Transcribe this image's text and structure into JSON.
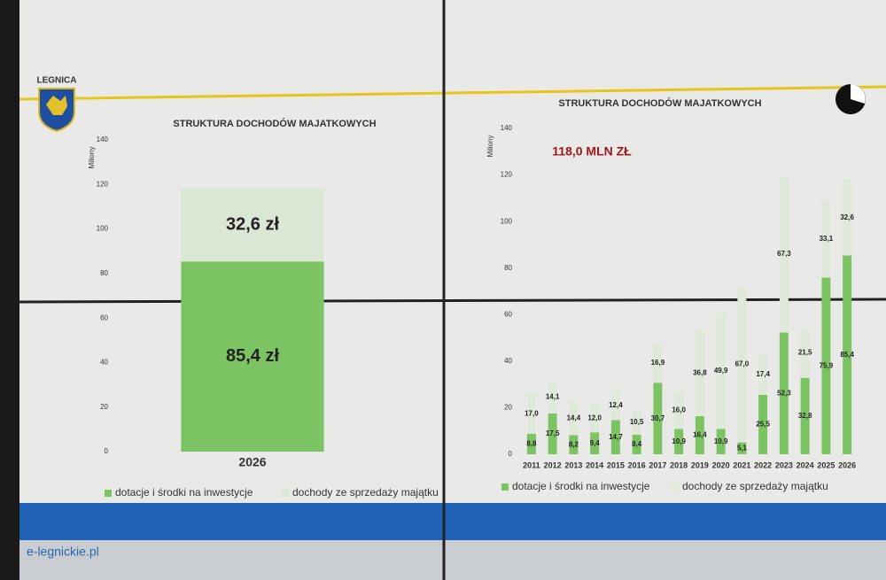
{
  "header": {
    "logo": "LEGNICA"
  },
  "watermark": "e-legnickie.pl",
  "chart_data": [
    {
      "type": "bar",
      "stacked": true,
      "title": "STRUKTURA DOCHODÓW MAJATKOWYCH",
      "y_label": "Miliony",
      "categories": [
        "2026"
      ],
      "series": [
        {
          "name": "dotacje i środki na inwestycje",
          "color": "#7cc463",
          "values": [
            85.4
          ],
          "value_labels": [
            "85,4 zł"
          ]
        },
        {
          "name": "dochody ze sprzedaży majątku",
          "color": "#dbe6d4",
          "values": [
            32.6
          ],
          "value_labels": [
            "32,6 zł"
          ]
        }
      ],
      "ylim": [
        0,
        140
      ],
      "yticks": [
        0,
        20,
        40,
        60,
        80,
        100,
        120,
        140
      ],
      "grid": false
    },
    {
      "type": "bar",
      "stacked": true,
      "title": "STRUKTURA DOCHODÓW MAJATKOWYCH",
      "y_label": "Miliony",
      "annotation": "118,0 MLN ZŁ",
      "categories": [
        "2011",
        "2012",
        "2013",
        "2014",
        "2015",
        "2016",
        "2017",
        "2018",
        "2019",
        "2020",
        "2021",
        "2022",
        "2023",
        "2024",
        "2025",
        "2026"
      ],
      "series": [
        {
          "name": "dotacje i środki na inwestycje",
          "color": "#7cc463",
          "values": [
            8.8,
            17.5,
            8.2,
            9.4,
            14.7,
            8.4,
            30.7,
            10.9,
            16.4,
            10.9,
            5.1,
            25.5,
            52.3,
            32.8,
            75.9,
            85.4
          ],
          "value_labels": [
            "8,8",
            "17,5",
            "8,2",
            "9,4",
            "14,7",
            "8,4",
            "30,7",
            "10,9",
            "16,4",
            "10,9",
            "5,1",
            "25,5",
            "52,3",
            "32,8",
            "75,9",
            "85,4"
          ]
        },
        {
          "name": "dochody ze sprzedaży majątku",
          "color": "#dfe8da",
          "values": [
            17.0,
            14.1,
            14.4,
            12.0,
            12.4,
            10.5,
            16.9,
            16.0,
            36.8,
            49.9,
            67.0,
            17.4,
            67.3,
            21.5,
            33.1,
            32.6
          ],
          "value_labels": [
            "17,0",
            "14,1",
            "14,4",
            "12,0",
            "12,4",
            "10,5",
            "16,9",
            "16,0",
            "36,8",
            "49,9",
            "67,0",
            "17,4",
            "67,3",
            "21,5",
            "33,1",
            "32,6"
          ]
        }
      ],
      "ylim": [
        0,
        140
      ],
      "yticks": [
        0,
        20,
        40,
        60,
        80,
        100,
        120,
        140
      ],
      "grid": false
    }
  ]
}
